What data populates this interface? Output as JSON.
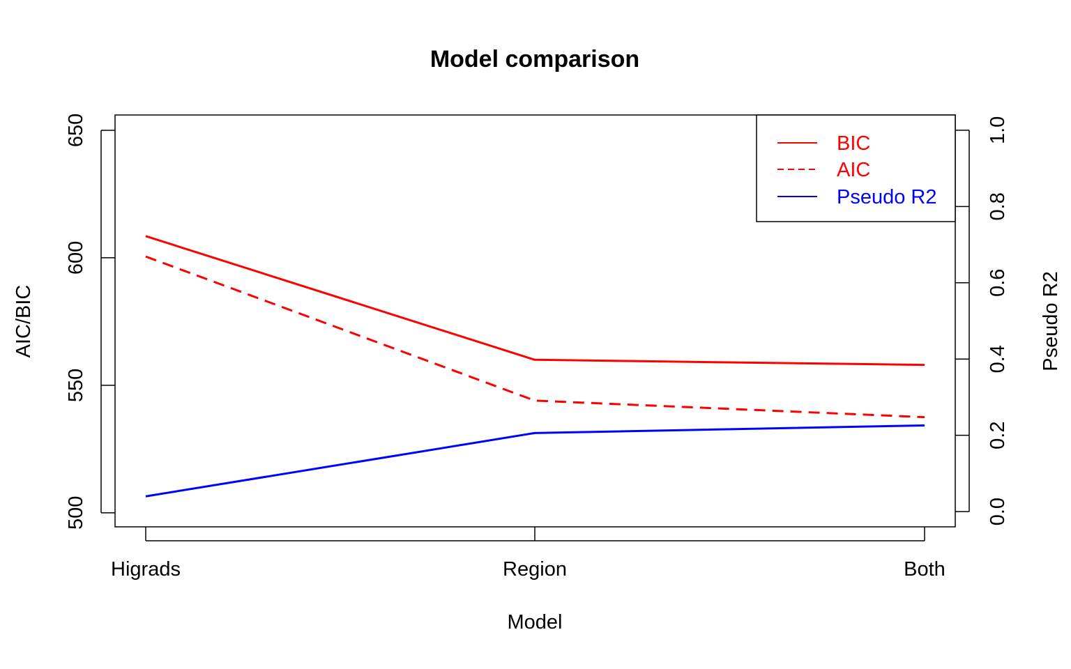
{
  "chart_data": {
    "type": "line",
    "title": "Model comparison",
    "xlabel": "Model",
    "ylabel": "AIC/BIC",
    "y2label": "Pseudo R2",
    "categories": [
      "Higrads",
      "Region",
      "Both"
    ],
    "ylim": [
      494.5,
      656
    ],
    "y2lim": [
      -0.04,
      1.04
    ],
    "yticks": [
      500,
      550,
      600,
      650
    ],
    "y2ticks": [
      0.0,
      0.2,
      0.4,
      0.6,
      0.8,
      1.0
    ],
    "ytick_labels": [
      "500",
      "550",
      "600",
      "650"
    ],
    "y2tick_labels": [
      "0.0",
      "0.2",
      "0.4",
      "0.6",
      "0.8",
      "1.0"
    ],
    "series": [
      {
        "name": "BIC",
        "axis": "left",
        "color": "#FF0000",
        "dash": "solid",
        "values": [
          608.5,
          560.0,
          558.0
        ]
      },
      {
        "name": "AIC",
        "axis": "left",
        "color": "#FF0000",
        "dash": "dashed",
        "values": [
          600.5,
          544.0,
          537.5
        ]
      },
      {
        "name": "Pseudo R2",
        "axis": "right",
        "color": "#0000FF",
        "dash": "solid",
        "values": [
          0.04,
          0.206,
          0.226
        ]
      }
    ],
    "legend": {
      "position": "top-right",
      "entries": [
        "BIC",
        "AIC",
        "Pseudo R2"
      ]
    },
    "grid": false
  }
}
